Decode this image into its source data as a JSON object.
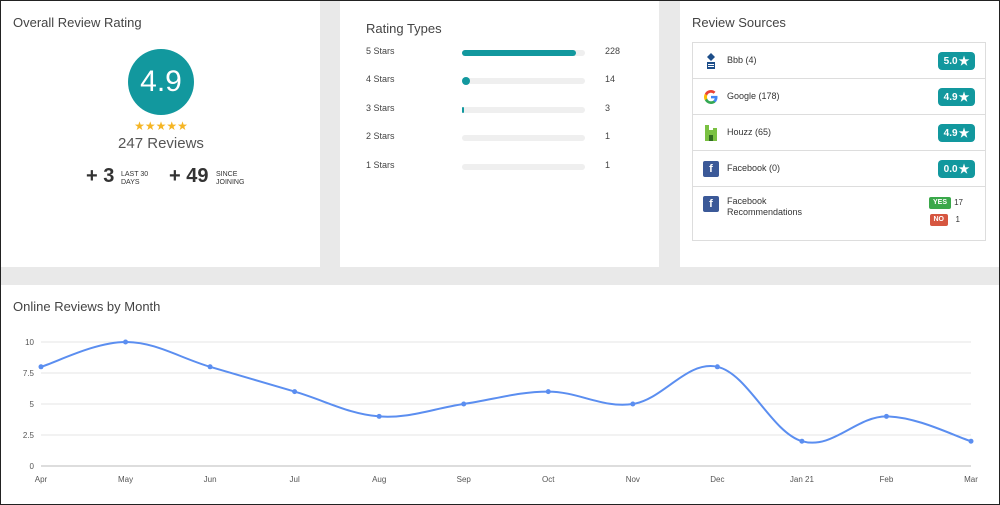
{
  "overall": {
    "title": "Overall Review Rating",
    "rating": "4.9",
    "stars": "★★★★★",
    "reviews": "247 Reviews",
    "stats": [
      {
        "value": "+ 3",
        "label_line1": "LAST 30",
        "label_line2": "DAYS"
      },
      {
        "value": "+ 49",
        "label_line1": "SINCE",
        "label_line2": "JOINING"
      }
    ]
  },
  "rating_types": {
    "title": "Rating Types",
    "rows": [
      {
        "label": "5 Stars",
        "count": "228",
        "fraction": 0.923
      },
      {
        "label": "4 Stars",
        "count": "14",
        "fraction": 0.057
      },
      {
        "label": "3 Stars",
        "count": "3",
        "fraction": 0.012
      },
      {
        "label": "2 Stars",
        "count": "1",
        "fraction": 0.004
      },
      {
        "label": "1 Stars",
        "count": "1",
        "fraction": 0.004
      }
    ]
  },
  "review_sources": {
    "title": "Review Sources",
    "items": [
      {
        "name": "Bbb (4)",
        "score": "5.0",
        "icon": "bbb-icon"
      },
      {
        "name": "Google (178)",
        "score": "4.9",
        "icon": "google-icon"
      },
      {
        "name": "Houzz (65)",
        "score": "4.9",
        "icon": "houzz-icon"
      },
      {
        "name": "Facebook (0)",
        "score": "0.0",
        "icon": "facebook-icon"
      }
    ],
    "recommendations": {
      "name_line1": "Facebook",
      "name_line2": "Recommendations",
      "yes_label": "YES",
      "yes_count": "17",
      "no_label": "NO",
      "no_count": "1",
      "icon": "facebook-icon"
    }
  },
  "colors": {
    "accent": "#12989e",
    "line": "#5b8ef0",
    "yes": "#3aa84a",
    "no": "#d65640",
    "facebook": "#3b5998"
  },
  "monthly_chart": {
    "title": "Online Reviews by Month"
  },
  "chart_data": {
    "type": "line",
    "categories": [
      "Apr",
      "May",
      "Jun",
      "Jul",
      "Aug",
      "Sep",
      "Oct",
      "Nov",
      "Dec",
      "Jan 21",
      "Feb",
      "Mar"
    ],
    "values": [
      8,
      10,
      8,
      6,
      4,
      5,
      6,
      5,
      8,
      2,
      4,
      2
    ],
    "yticks": [
      "0",
      "2.5",
      "5",
      "7.5",
      "10"
    ],
    "ylim": [
      0,
      10
    ],
    "grid": true,
    "title": "Online Reviews by Month"
  }
}
